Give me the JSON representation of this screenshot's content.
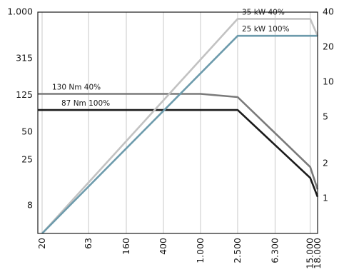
{
  "chart_data": {
    "type": "line",
    "x_scale": "log",
    "y_left_scale": "log",
    "y_right_scale": "log",
    "x_ticks": [
      "20",
      "63",
      "160",
      "400",
      "1.000",
      "2.500",
      "6.300",
      "15.000",
      "18.000"
    ],
    "y_left_ticks": [
      "1.000",
      "315",
      "125",
      "50",
      "25",
      "8"
    ],
    "y_right_ticks": [
      "40",
      "20",
      "10",
      "5",
      "2",
      "1"
    ],
    "xlim": [
      18,
      18000
    ],
    "ylim_left": [
      4,
      1000
    ],
    "ylim_right": [
      0.5,
      40
    ],
    "grid": true,
    "annotations": [
      {
        "id": "torque40",
        "text": "130 Nm  40%"
      },
      {
        "id": "torque100",
        "text": "87 Nm 100%"
      },
      {
        "id": "power40",
        "text": "35 kW  40%"
      },
      {
        "id": "power100",
        "text": "25 kW  100%"
      }
    ],
    "series": [
      {
        "id": "torque40",
        "axis": "left",
        "color": "#7a7a7a",
        "x": [
          18,
          400,
          1000,
          2500,
          15000,
          18000
        ],
        "y": [
          130,
          130,
          130,
          120,
          21,
          12
        ]
      },
      {
        "id": "torque100",
        "axis": "left",
        "color": "#1a1a1a",
        "x": [
          18,
          400,
          1000,
          2500,
          15000,
          18000
        ],
        "y": [
          87,
          87,
          87,
          87,
          16,
          10
        ]
      },
      {
        "id": "power40",
        "axis": "right",
        "color": "#c2c2c2",
        "x": [
          20,
          2500,
          15000,
          18000
        ],
        "y": [
          0.28,
          35,
          35,
          25
        ]
      },
      {
        "id": "power100",
        "axis": "right",
        "color": "#6d9bac",
        "x": [
          20,
          2500,
          18000
        ],
        "y": [
          0.2,
          25,
          25
        ]
      }
    ]
  }
}
